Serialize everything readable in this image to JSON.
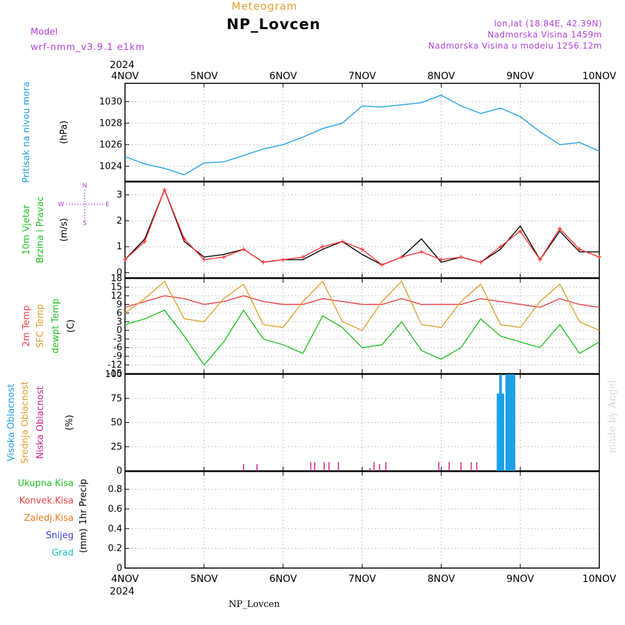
{
  "header": {
    "chart_kind": "Meteogram",
    "station": "NP_Lovcen",
    "model_label": "Model",
    "model_name": "wrf-nmm_v3.9.1  e1km",
    "coords": "lon,lat (18.84E, 42.39N)",
    "elevation": "Nadmorska Visina 1459m",
    "model_elevation": "Nadmorska Visina u modelu 1256.12m",
    "year": "2024",
    "footer_station": "NP_Lovcen",
    "credit": "made by Angel"
  },
  "colors": {
    "pressure": "#1ea0e6",
    "wind_speed": "#000000",
    "wind_gust": "#ff3333",
    "temp_2m": "#e84040",
    "sfc_temp": "#e0a030",
    "dewpoint": "#22c022",
    "cloud_high": "#1ea0e6",
    "cloud_mid": "#e0a030",
    "cloud_low": "#d0208c",
    "precip_total": "#22c022",
    "precip_conv": "#e84040",
    "precip_frozen": "#f07820",
    "precip_snow": "#4040e0",
    "precip_hail": "#20c0c0"
  },
  "chart_data": [
    {
      "type": "line",
      "name": "pressure",
      "ylabel_parts": [
        "Pritisak na nivou mora",
        "(hPa)"
      ],
      "ylim": [
        1022.6,
        1031.7
      ],
      "yticks": [
        "1024",
        "1026",
        "1028",
        "1030"
      ],
      "grid": true,
      "x_dates": [
        "4NOV",
        "5NOV",
        "6NOV",
        "7NOV",
        "8NOV",
        "9NOV",
        "10NOV"
      ],
      "x": [
        0,
        0.25,
        0.5,
        0.75,
        1.0,
        1.25,
        1.5,
        1.75,
        2.0,
        2.25,
        2.5,
        2.75,
        3.0,
        3.25,
        3.5,
        3.75,
        4.0,
        4.25,
        4.5,
        4.75,
        5.0,
        5.25,
        5.5,
        5.75,
        6.0
      ],
      "series": [
        {
          "values": [
            1024.9,
            1024.2,
            1023.8,
            1023.2,
            1024.3,
            1024.4,
            1025.0,
            1025.6,
            1026.0,
            1026.7,
            1027.5,
            1028.0,
            1029.6,
            1029.5,
            1029.7,
            1029.9,
            1030.6,
            1029.6,
            1028.9,
            1029.4,
            1028.6,
            1027.2,
            1026.0,
            1026.2,
            1025.4
          ]
        }
      ]
    },
    {
      "type": "line",
      "name": "wind",
      "ylabel_parts": [
        "10m Vjetar",
        "Brzina i Pravac",
        "(m/s)"
      ],
      "direction_legend": [
        "N",
        "W",
        "E",
        "S"
      ],
      "ylim": [
        -0.2,
        3.5
      ],
      "yticks": [
        "0",
        "1",
        "2",
        "3"
      ],
      "grid": true,
      "x": [
        0,
        0.25,
        0.5,
        0.75,
        1.0,
        1.25,
        1.5,
        1.75,
        2.0,
        2.25,
        2.5,
        2.75,
        3.0,
        3.25,
        3.5,
        3.75,
        4.0,
        4.25,
        4.5,
        4.75,
        5.0,
        5.25,
        5.5,
        5.75,
        6.0
      ],
      "series": [
        {
          "values": [
            0.5,
            1.3,
            3.2,
            1.2,
            0.6,
            0.7,
            0.9,
            0.4,
            0.5,
            0.5,
            0.9,
            1.2,
            0.7,
            0.3,
            0.6,
            1.3,
            0.4,
            0.6,
            0.4,
            0.9,
            1.8,
            0.5,
            1.6,
            0.8,
            0.8
          ]
        },
        {
          "values": [
            0.5,
            1.2,
            3.2,
            1.3,
            0.5,
            0.6,
            0.9,
            0.4,
            0.5,
            0.6,
            1.0,
            1.2,
            0.9,
            0.3,
            0.6,
            0.8,
            0.5,
            0.6,
            0.4,
            1.0,
            1.6,
            0.5,
            1.7,
            0.9,
            0.6
          ]
        }
      ]
    },
    {
      "type": "line",
      "name": "temperature",
      "ylabel_parts": [
        "2m Temp",
        "SFC Temp",
        "dewpt Temp",
        "(C)"
      ],
      "ylim": [
        -15,
        18
      ],
      "yticks": [
        "18",
        "15",
        "12",
        "9",
        "6",
        "3",
        "0",
        "-3",
        "-6",
        "-9",
        "-12",
        "-15"
      ],
      "grid": true,
      "x": [
        0,
        0.25,
        0.5,
        0.75,
        1.0,
        1.25,
        1.5,
        1.75,
        2.0,
        2.25,
        2.5,
        2.75,
        3.0,
        3.25,
        3.5,
        3.75,
        4.0,
        4.25,
        4.5,
        4.75,
        5.0,
        5.25,
        5.5,
        5.75,
        6.0
      ],
      "series": [
        {
          "values": [
            8,
            10,
            12,
            11,
            9,
            10,
            12,
            10,
            9,
            9,
            11,
            10,
            9,
            9,
            11,
            9,
            9,
            9,
            11,
            10,
            9,
            8,
            11,
            9,
            8
          ]
        },
        {
          "values": [
            6,
            11,
            17,
            4,
            3,
            11,
            16,
            2,
            1,
            10,
            17,
            3,
            0,
            10,
            17,
            2,
            1,
            10,
            16,
            2,
            1,
            10,
            16,
            3,
            0
          ]
        },
        {
          "values": [
            2,
            4,
            7,
            -2,
            -12,
            -4,
            7,
            -3,
            -5,
            -8,
            5,
            1,
            -6,
            -5,
            3,
            -7,
            -10,
            -6,
            4,
            -2,
            -4,
            -6,
            2,
            -8,
            -4
          ]
        }
      ]
    },
    {
      "type": "bar",
      "name": "cloudiness",
      "ylabel_parts": [
        "Visoka Oblacnost",
        "Srednja Oblacnost",
        "Niska Oblacnost",
        "(%)"
      ],
      "ylim": [
        0,
        100
      ],
      "yticks": [
        "0",
        "25",
        "50",
        "75",
        "100"
      ],
      "grid": true,
      "series": [
        {
          "name": "high",
          "x": [
            4.72,
            4.75,
            4.78,
            4.83,
            4.86,
            4.89,
            4.92
          ],
          "values": [
            80,
            100,
            80,
            100,
            100,
            100,
            100
          ]
        },
        {
          "name": "low",
          "x": [
            1.5,
            1.67,
            2.35,
            2.4,
            2.52,
            2.58,
            2.7,
            3.1,
            3.15,
            3.22,
            3.3,
            3.97,
            4.1,
            4.25,
            4.38,
            4.45
          ],
          "values": [
            7,
            7,
            9,
            9,
            9,
            9,
            9,
            3,
            9,
            7,
            9,
            9,
            9,
            9,
            9,
            9
          ]
        }
      ]
    },
    {
      "type": "bar",
      "name": "precipitation",
      "ylabel_parts": [
        "1hr Precip",
        "(mm)"
      ],
      "legend": [
        "Ukupna  Kisa",
        "Konvek.Kisa",
        "Zaledj.Kisa",
        "Snijeg",
        "Grad"
      ],
      "ylim": [
        0,
        0.98
      ],
      "yticks": [
        "0",
        "0.2",
        "0.4",
        "0.6",
        "0.8"
      ],
      "grid": true,
      "series": [
        {
          "name": "Ukupna  Kisa",
          "values": []
        }
      ]
    }
  ]
}
